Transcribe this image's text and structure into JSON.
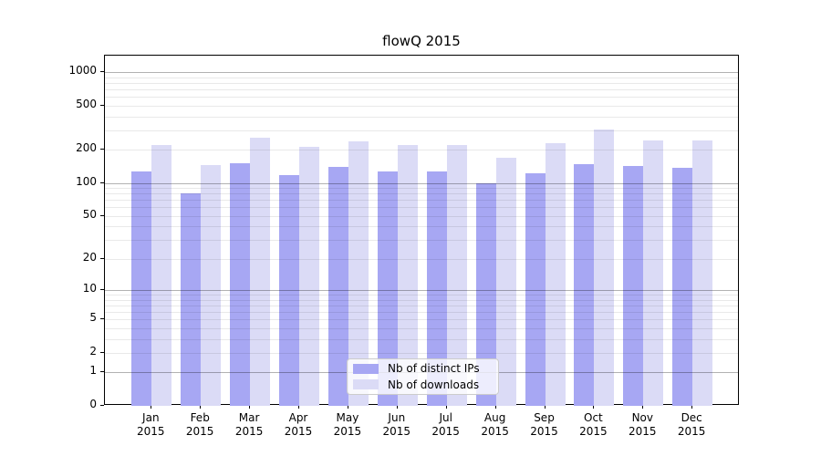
{
  "chart_data": {
    "type": "bar",
    "title": "flowQ 2015",
    "categories": [
      "Jan",
      "Feb",
      "Mar",
      "Apr",
      "May",
      "Jun",
      "Jul",
      "Aug",
      "Sep",
      "Oct",
      "Nov",
      "Dec"
    ],
    "category_year": "2015",
    "series": [
      {
        "name": "Nb of distinct IPs",
        "color": "#a7a7f3",
        "values": [
          127,
          80,
          152,
          117,
          139,
          128,
          128,
          100,
          122,
          149,
          144,
          137
        ]
      },
      {
        "name": "Nb of downloads",
        "color": "#dbdbf6",
        "values": [
          222,
          146,
          257,
          213,
          239,
          221,
          220,
          170,
          230,
          305,
          244,
          244
        ]
      }
    ],
    "yscale": "log1p",
    "ylim": [
      0,
      1400
    ],
    "yticks": [
      0,
      1,
      2,
      5,
      10,
      20,
      50,
      100,
      200,
      500,
      1000
    ],
    "major_grid_values": [
      1,
      10,
      100,
      1000
    ],
    "grid": "on",
    "xlabel": "",
    "ylabel": "",
    "legend_position": "lower center"
  }
}
